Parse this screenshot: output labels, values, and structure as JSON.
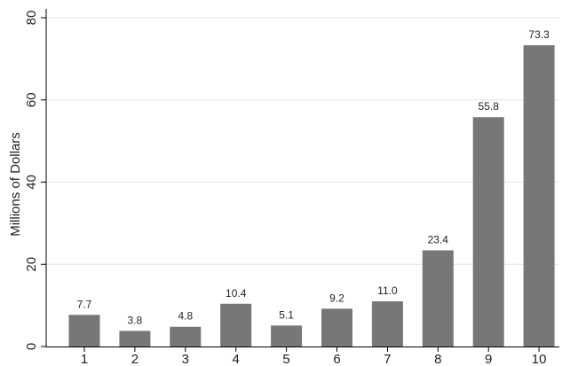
{
  "chart_data": {
    "type": "bar",
    "categories": [
      "1",
      "2",
      "3",
      "4",
      "5",
      "6",
      "7",
      "8",
      "9",
      "10"
    ],
    "values": [
      7.7,
      3.8,
      4.8,
      10.4,
      5.1,
      9.2,
      11.0,
      23.4,
      55.8,
      73.3
    ],
    "value_labels": [
      "7.7",
      "3.8",
      "4.8",
      "10.4",
      "5.1",
      "9.2",
      "11.0",
      "23.4",
      "55.8",
      "73.3"
    ],
    "title": "",
    "xlabel": "",
    "ylabel": "Millions of Dollars",
    "ylim": [
      0,
      80
    ],
    "yticks": [
      0,
      20,
      40,
      60,
      80
    ],
    "ytick_labels": [
      "0",
      "20",
      "40",
      "60",
      "80"
    ],
    "grid": true,
    "legend": "none",
    "colors": {
      "bar": "#77777a",
      "grid": "#e4e4e4",
      "axis": "#000000",
      "text": "#222222"
    }
  }
}
